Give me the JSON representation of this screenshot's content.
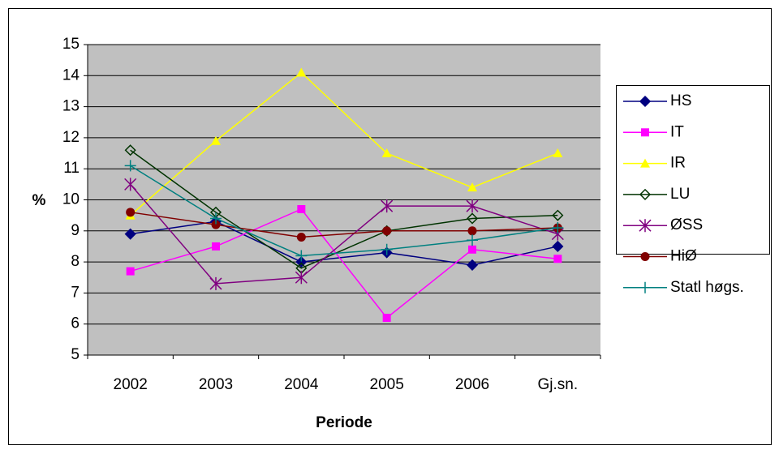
{
  "chart_data": {
    "type": "line",
    "y_label": "%",
    "x_label": "Periode",
    "categories": [
      "2002",
      "2003",
      "2004",
      "2005",
      "2006",
      "Gj.sn."
    ],
    "ylim": [
      5,
      15
    ],
    "yticks": [
      5,
      6,
      7,
      8,
      9,
      10,
      11,
      12,
      13,
      14,
      15
    ],
    "grid": true,
    "plot_background": "#c0c0c0",
    "legend": "right",
    "series": [
      {
        "name": "HS",
        "color": "#000080",
        "marker": "diamond",
        "values": [
          8.9,
          9.3,
          8.0,
          8.3,
          7.9,
          8.5
        ]
      },
      {
        "name": "IT",
        "color": "#ff00ff",
        "marker": "square",
        "values": [
          7.7,
          8.5,
          9.7,
          6.2,
          8.4,
          8.1
        ]
      },
      {
        "name": "IR",
        "color": "#ffff00",
        "marker": "triangle",
        "values": [
          9.5,
          11.9,
          14.1,
          11.5,
          10.4,
          11.5
        ]
      },
      {
        "name": "LU",
        "color": "#003300",
        "marker": "open-diamond",
        "values": [
          11.6,
          9.6,
          7.8,
          9.0,
          9.4,
          9.5
        ]
      },
      {
        "name": "ØSS",
        "color": "#800080",
        "marker": "star",
        "values": [
          10.5,
          7.3,
          7.5,
          9.8,
          9.8,
          8.9
        ]
      },
      {
        "name": "HiØ",
        "color": "#800000",
        "marker": "circle",
        "values": [
          9.6,
          9.2,
          8.8,
          9.0,
          9.0,
          9.1
        ]
      },
      {
        "name": "Statl høgs.",
        "color": "#008080",
        "marker": "plus",
        "values": [
          11.1,
          9.4,
          8.2,
          8.4,
          8.7,
          9.1
        ]
      }
    ]
  }
}
